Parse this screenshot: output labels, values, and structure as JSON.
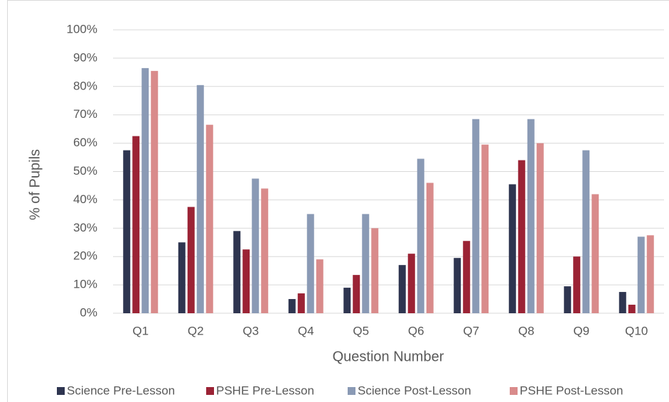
{
  "chart_data": {
    "type": "bar",
    "x_label": "Question Number",
    "y_label": "% of Pupils",
    "categories": [
      "Q1",
      "Q2",
      "Q3",
      "Q4",
      "Q5",
      "Q6",
      "Q7",
      "Q8",
      "Q9",
      "Q10"
    ],
    "series": [
      {
        "name": "Science Pre-Lesson",
        "color": "#2e3550",
        "values": [
          57.5,
          25,
          29,
          5,
          9,
          17,
          19.5,
          45.5,
          9.5,
          7.5
        ]
      },
      {
        "name": "PSHE Pre-Lesson",
        "color": "#9b2335",
        "values": [
          62.5,
          37.5,
          22.5,
          7,
          13.5,
          21,
          25.5,
          54,
          20,
          3
        ]
      },
      {
        "name": "Science Post-Lesson",
        "color": "#8a9ab5",
        "values": [
          86.5,
          80.5,
          47.5,
          35,
          35,
          54.5,
          68.5,
          68.5,
          57.5,
          27
        ]
      },
      {
        "name": "PSHE Post-Lesson",
        "color": "#d98b8b",
        "values": [
          85.5,
          66.5,
          44,
          19,
          30,
          46,
          59.5,
          60,
          42,
          27.5
        ]
      }
    ],
    "ylim": [
      0,
      100
    ],
    "yticks": [
      {
        "value": 0,
        "label": "0%"
      },
      {
        "value": 10,
        "label": "10%"
      },
      {
        "value": 20,
        "label": "20%"
      },
      {
        "value": 30,
        "label": "30%"
      },
      {
        "value": 40,
        "label": "40%"
      },
      {
        "value": 50,
        "label": "50%"
      },
      {
        "value": 60,
        "label": "60%"
      },
      {
        "value": 70,
        "label": "70%"
      },
      {
        "value": 80,
        "label": "80%"
      },
      {
        "value": 90,
        "label": "90%"
      },
      {
        "value": 100,
        "label": "100%"
      }
    ],
    "grid": true,
    "legend": "bottom"
  }
}
